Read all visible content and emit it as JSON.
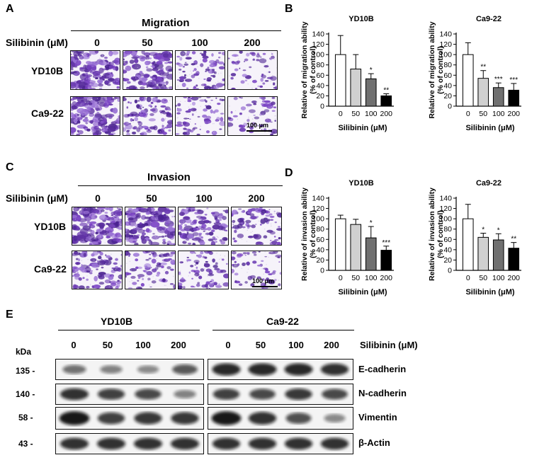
{
  "panels": {
    "a": "A",
    "b": "B",
    "c": "C",
    "d": "D",
    "e": "E"
  },
  "migration": {
    "title": "Migration",
    "conc_label": "Silibinin (μM)",
    "concentrations": [
      "0",
      "50",
      "100",
      "200"
    ],
    "rows": [
      "YD10B",
      "Ca9-22"
    ],
    "scale": "100 μm"
  },
  "invasion": {
    "title": "Invasion",
    "conc_label": "Silibinin (μM)",
    "concentrations": [
      "0",
      "50",
      "100",
      "200"
    ],
    "rows": [
      "YD10B",
      "Ca9-22"
    ],
    "scale": "100 μm"
  },
  "chart_data": [
    {
      "type": "bar",
      "title": "YD10B",
      "ylabel": "Relative of migration ability (% of control)",
      "xlabel": "Silibinin (μM)",
      "categories": [
        "0",
        "50",
        "100",
        "200"
      ],
      "values": [
        100,
        72,
        53,
        20
      ],
      "errors": [
        37,
        28,
        10,
        4
      ],
      "significance": [
        "",
        "",
        "*",
        "**"
      ],
      "ylim": [
        0,
        140
      ],
      "yticks": [
        0,
        20,
        40,
        60,
        80,
        100,
        120,
        140
      ],
      "colors": [
        "#ffffff",
        "#d0d0d0",
        "#707070",
        "#000000"
      ]
    },
    {
      "type": "bar",
      "title": "Ca9-22",
      "ylabel": "Relative of migration ability (% of control)",
      "xlabel": "Silibinin (μM)",
      "categories": [
        "0",
        "50",
        "100",
        "200"
      ],
      "values": [
        100,
        54,
        36,
        31
      ],
      "errors": [
        23,
        15,
        9,
        13
      ],
      "significance": [
        "",
        "**",
        "***",
        "***"
      ],
      "ylim": [
        0,
        140
      ],
      "yticks": [
        0,
        20,
        40,
        60,
        80,
        100,
        120,
        140
      ],
      "colors": [
        "#ffffff",
        "#d0d0d0",
        "#707070",
        "#000000"
      ]
    },
    {
      "type": "bar",
      "title": "YD10B",
      "ylabel": "Relative of invasion ability (% of control)",
      "xlabel": "Silibinin (μM)",
      "categories": [
        "0",
        "50",
        "100",
        "200"
      ],
      "values": [
        100,
        89,
        63,
        39
      ],
      "errors": [
        7,
        10,
        22,
        8
      ],
      "significance": [
        "",
        "",
        "*",
        "***"
      ],
      "ylim": [
        0,
        140
      ],
      "yticks": [
        0,
        20,
        40,
        60,
        80,
        100,
        120,
        140
      ],
      "colors": [
        "#ffffff",
        "#d0d0d0",
        "#707070",
        "#000000"
      ]
    },
    {
      "type": "bar",
      "title": "Ca9-22",
      "ylabel": "Relative of invasion ability (% of control)",
      "xlabel": "Silibinin (μM)",
      "categories": [
        "0",
        "50",
        "100",
        "200"
      ],
      "values": [
        100,
        64,
        59,
        43
      ],
      "errors": [
        28,
        8,
        12,
        11
      ],
      "significance": [
        "",
        "*",
        "*",
        "**"
      ],
      "ylim": [
        0,
        140
      ],
      "yticks": [
        0,
        20,
        40,
        60,
        80,
        100,
        120,
        140
      ],
      "colors": [
        "#ffffff",
        "#d0d0d0",
        "#707070",
        "#000000"
      ]
    }
  ],
  "western": {
    "groups": [
      "YD10B",
      "Ca9-22"
    ],
    "kda_label": "kDa",
    "lanes": [
      "0",
      "50",
      "100",
      "200"
    ],
    "treatment_label": "Silibinin (μM)",
    "proteins": [
      {
        "name": "E-cadherin",
        "kda": "135 -",
        "yd10b": [
          0.45,
          0.35,
          0.3,
          0.6
        ],
        "ca922": [
          0.9,
          0.9,
          0.9,
          0.85
        ]
      },
      {
        "name": "N-cadherin",
        "kda": "140 -",
        "yd10b": [
          0.85,
          0.75,
          0.7,
          0.35
        ],
        "ca922": [
          0.75,
          0.7,
          0.8,
          0.7
        ]
      },
      {
        "name": "Vimentin",
        "kda": "58 -",
        "yd10b": [
          1.0,
          0.75,
          0.8,
          0.8
        ],
        "ca922": [
          1.0,
          0.85,
          0.65,
          0.3
        ]
      },
      {
        "name": "β-Actin",
        "kda": "43 -",
        "yd10b": [
          0.85,
          0.85,
          0.85,
          0.85
        ],
        "ca922": [
          0.85,
          0.85,
          0.85,
          0.85
        ]
      }
    ]
  }
}
